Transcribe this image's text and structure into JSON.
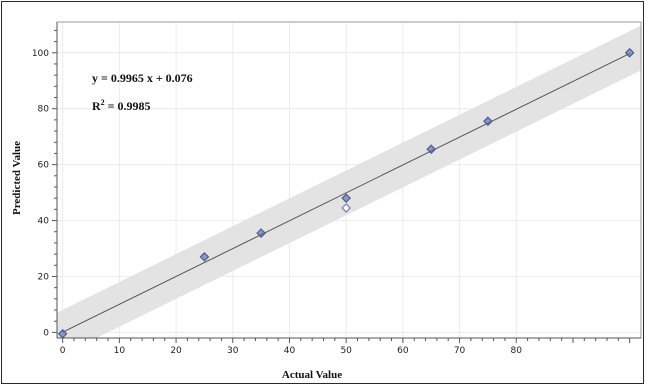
{
  "chart_data": {
    "type": "scatter",
    "title": "",
    "xlabel": "Actual Value",
    "ylabel": "Predicted Value",
    "xlim": [
      -1,
      102
    ],
    "ylim": [
      -2,
      111
    ],
    "x_ticks": [
      0,
      10,
      20,
      30,
      40,
      50,
      60,
      70,
      80
    ],
    "y_ticks": [
      0,
      20,
      40,
      60,
      80,
      100
    ],
    "grid": true,
    "annotations": {
      "equation": "y = 0.9965 x + 0.076",
      "r2_prefix": "R",
      "r2_sup": "2",
      "r2_value": " = 0.9985"
    },
    "fit_line": {
      "slope": 0.9965,
      "intercept": 0.076
    },
    "confidence_band_halfwidth": 8,
    "series": [
      {
        "marker": "filled-diamond",
        "color": "#4a5a9a",
        "x": [
          0,
          25,
          35,
          50,
          65,
          75,
          100
        ],
        "y": [
          -0.5,
          27,
          35.5,
          48,
          65.5,
          75.5,
          100
        ]
      },
      {
        "marker": "open-diamond",
        "color": "#6f7fc0",
        "x": [
          50
        ],
        "y": [
          44.5
        ]
      }
    ]
  }
}
